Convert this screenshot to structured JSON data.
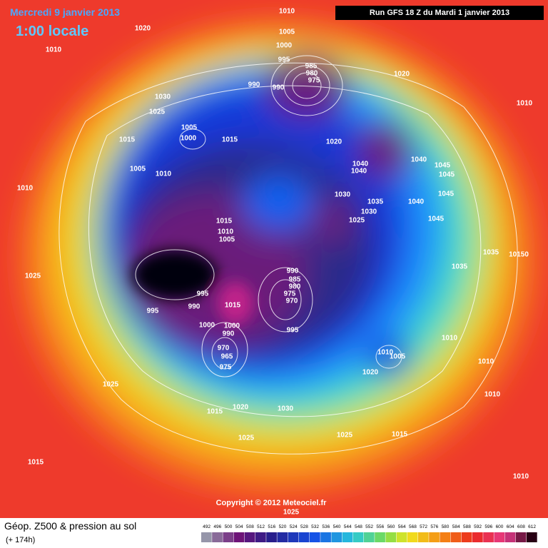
{
  "header": {
    "date": "Mercredi 9 janvier 2013",
    "time": "1:00 locale",
    "run": "Run GFS 18 Z du Mardi 1 janvier 2013"
  },
  "map": {
    "copyright": "Copyright © 2012 Meteociel.fr",
    "isobar_labels": [
      "1010",
      "1020",
      "1010",
      "1005",
      "1000",
      "995",
      "985",
      "980",
      "975",
      "990",
      "990",
      "1020",
      "1010",
      "1030",
      "1025",
      "1005",
      "1000",
      "1015",
      "1015",
      "1020",
      "1040",
      "1040",
      "1040",
      "1045",
      "1045",
      "1005",
      "1010",
      "1010",
      "1030",
      "1035",
      "1040",
      "1045",
      "1030",
      "1025",
      "1045",
      "1015",
      "1010",
      "1005",
      "1035",
      "10150",
      "1035",
      "990",
      "985",
      "980",
      "1025",
      "995",
      "975",
      "970",
      "990",
      "995",
      "1015",
      "1000",
      "1000",
      "990",
      "995",
      "970",
      "965",
      "975",
      "1010",
      "1010",
      "1005",
      "1010",
      "1020",
      "1025",
      "1015",
      "1020",
      "1030",
      "1010",
      "1025",
      "1025",
      "1015",
      "1015",
      "1010",
      "1025"
    ]
  },
  "footer": {
    "title": "Géop. Z500 & pression au sol",
    "lead": "(+ 174h)",
    "scale": [
      492,
      496,
      500,
      504,
      508,
      512,
      516,
      520,
      524,
      528,
      532,
      536,
      540,
      544,
      548,
      552,
      556,
      560,
      564,
      568,
      572,
      576,
      580,
      584,
      588,
      592,
      596,
      600,
      604,
      608,
      612
    ]
  }
}
